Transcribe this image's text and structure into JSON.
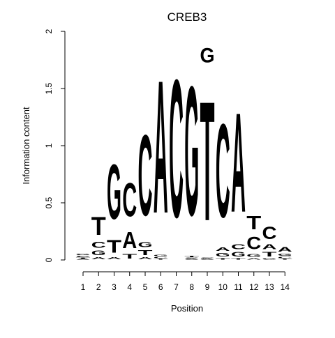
{
  "chart_data": {
    "type": "sequence-logo",
    "title": "CREB3",
    "xlabel": "Position",
    "ylabel": "Information content",
    "ylim": [
      0,
      2
    ],
    "yticks": [
      "0",
      "0.5",
      "1",
      "1.5",
      "2"
    ],
    "positions": [
      "1",
      "2",
      "3",
      "4",
      "5",
      "6",
      "7",
      "8",
      "9",
      "10",
      "11",
      "12",
      "13",
      "14"
    ],
    "colors": {
      "A": "#00e000",
      "C": "#0000ff",
      "G": "#ffa500",
      "T": "#ff0000"
    },
    "columns": [
      [
        [
          "A",
          0.01
        ],
        [
          "T",
          0.01
        ],
        [
          "C",
          0.02
        ],
        [
          "G",
          0.02
        ]
      ],
      [
        [
          "A",
          0.03
        ],
        [
          "G",
          0.06
        ],
        [
          "C",
          0.08
        ],
        [
          "T",
          0.25
        ]
      ],
      [
        [
          "A",
          0.03
        ],
        [
          "T",
          0.18
        ],
        [
          "G",
          0.77
        ]
      ],
      [
        [
          "T",
          0.06
        ],
        [
          "A",
          0.23
        ],
        [
          "C",
          0.47
        ]
      ],
      [
        [
          "A",
          0.03
        ],
        [
          "T",
          0.07
        ],
        [
          "G",
          0.07
        ],
        [
          "C",
          1.13
        ]
      ],
      [
        [
          "T",
          0.01
        ],
        [
          "C",
          0.02
        ],
        [
          "G",
          0.02
        ],
        [
          "A",
          1.86
        ]
      ],
      [
        [
          "C",
          1.93
        ]
      ],
      [
        [
          "A",
          0.01
        ],
        [
          "C",
          0.01
        ],
        [
          "T",
          0.02
        ],
        [
          "G",
          1.81
        ]
      ],
      [
        [
          "A",
          0.01
        ],
        [
          "C",
          0.01
        ],
        [
          "T",
          1.67
        ],
        [
          "G",
          0.2
        ]
      ],
      [
        [
          "T",
          0.02
        ],
        [
          "G",
          0.05
        ],
        [
          "A",
          0.05
        ],
        [
          "C",
          1.31
        ]
      ],
      [
        [
          "T",
          0.02
        ],
        [
          "G",
          0.06
        ],
        [
          "C",
          0.07
        ],
        [
          "A",
          1.39
        ]
      ],
      [
        [
          "A",
          0.02
        ],
        [
          "G",
          0.04
        ],
        [
          "C",
          0.17
        ],
        [
          "T",
          0.19
        ]
      ],
      [
        [
          "G",
          0.02
        ],
        [
          "T",
          0.06
        ],
        [
          "A",
          0.07
        ],
        [
          "C",
          0.17
        ]
      ],
      [
        [
          "T",
          0.01
        ],
        [
          "C",
          0.02
        ],
        [
          "G",
          0.03
        ],
        [
          "A",
          0.06
        ]
      ]
    ]
  }
}
